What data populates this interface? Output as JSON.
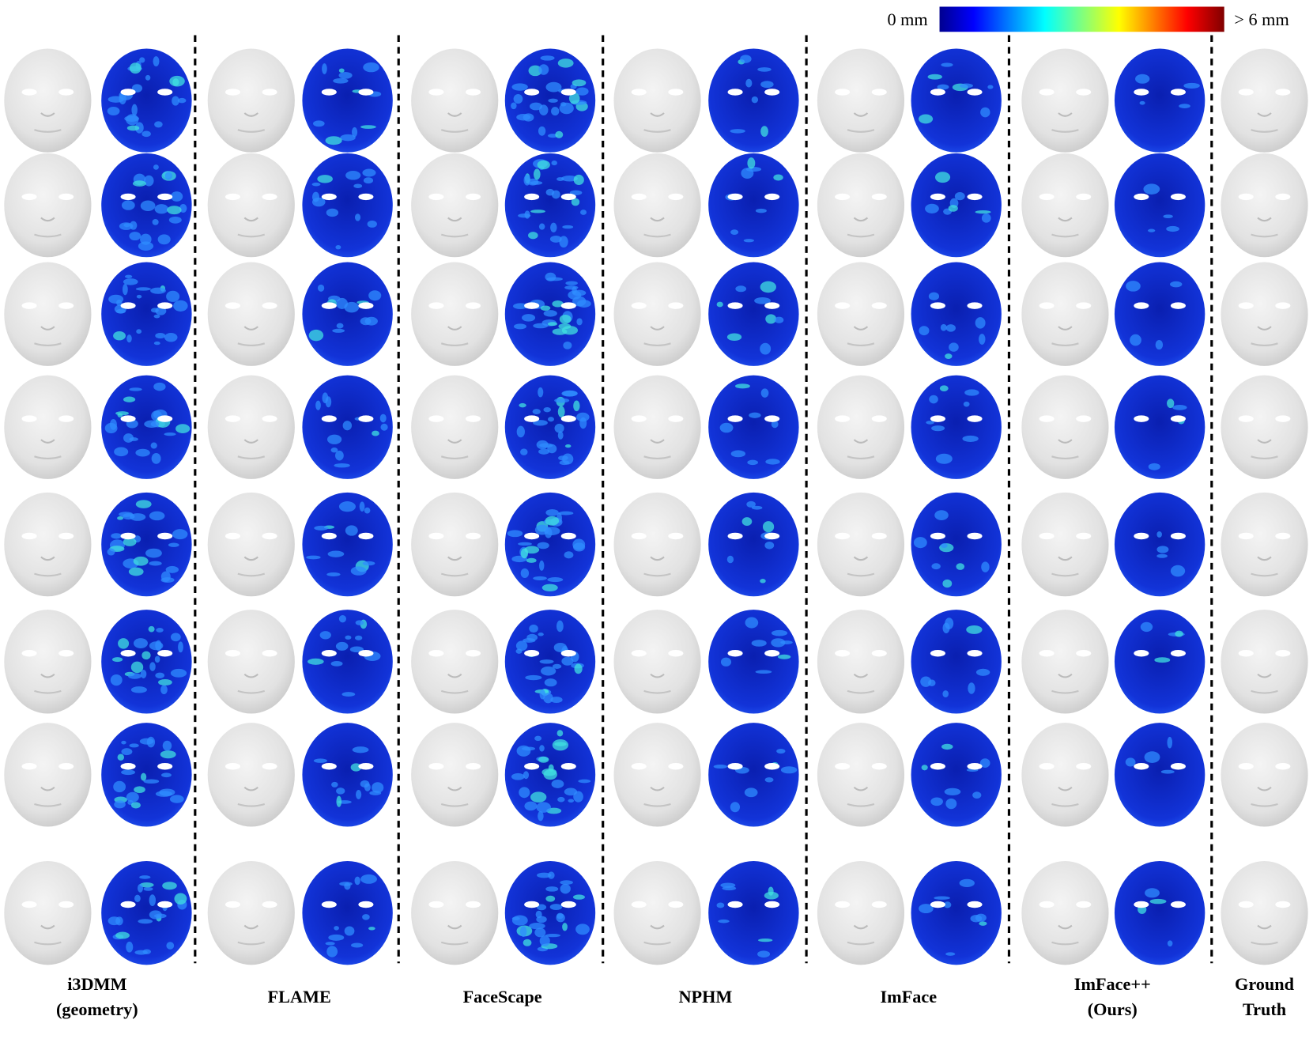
{
  "colorbar": {
    "min_label": "0 mm",
    "max_label": "> 6 mm"
  },
  "columns": [
    {
      "label": [
        "i3DMM",
        "(geometry)"
      ]
    },
    {
      "label": [
        "FLAME"
      ]
    },
    {
      "label": [
        "FaceScape"
      ]
    },
    {
      "label": [
        "NPHM"
      ]
    },
    {
      "label": [
        "ImFace"
      ]
    },
    {
      "label": [
        "ImFace++",
        "(Ours)"
      ]
    },
    {
      "label": [
        "Ground",
        "Truth"
      ]
    }
  ]
}
